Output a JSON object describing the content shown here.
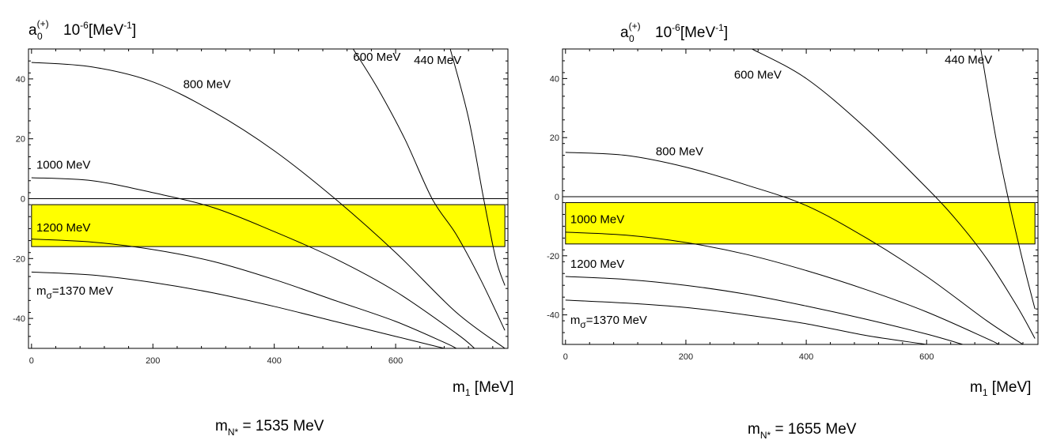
{
  "chart_data": [
    {
      "type": "line",
      "ylabel": {
        "base": "a",
        "sub": "0",
        "sup": "(+)",
        "factor_base": "10",
        "factor_sup": "-6",
        "unit_base": "[MeV",
        "unit_sup": "-1",
        "unit_close": "]"
      },
      "xlabel": {
        "base": "m",
        "sub": "1",
        "unit": "[MeV]"
      },
      "caption": {
        "base": "m",
        "sub": "N*",
        "text": "= 1535 MeV"
      },
      "xlim": [
        -5,
        785
      ],
      "ylim": [
        -50,
        50
      ],
      "xticks": [
        "0",
        "200",
        "400",
        "600"
      ],
      "yticks": [
        "-40",
        "-20",
        "0",
        "20",
        "40"
      ],
      "band": {
        "x": [
          0,
          780
        ],
        "y": [
          -16,
          -2
        ],
        "color": "#ffff00"
      },
      "series": [
        {
          "name": "440 MeV",
          "label_x": 630,
          "label_y": 45,
          "points": [
            [
              690,
              50
            ],
            [
              720,
              27
            ],
            [
              745,
              0
            ],
            [
              765,
              -20
            ],
            [
              780,
              -29
            ]
          ]
        },
        {
          "name": "600 MeV",
          "label_x": 530,
          "label_y": 46,
          "points": [
            [
              530,
              50
            ],
            [
              570,
              37
            ],
            [
              615,
              20
            ],
            [
              660,
              0
            ],
            [
              700,
              -12
            ],
            [
              740,
              -27
            ],
            [
              780,
              -44
            ]
          ]
        },
        {
          "name": "800 MeV",
          "label_x": 250,
          "label_y": 37,
          "points": [
            [
              0,
              45.5
            ],
            [
              100,
              44
            ],
            [
              200,
              39
            ],
            [
              300,
              29
            ],
            [
              400,
              16
            ],
            [
              500,
              0
            ],
            [
              600,
              -18
            ],
            [
              700,
              -38
            ],
            [
              780,
              -50
            ]
          ]
        },
        {
          "name": "1000 MeV",
          "label_x": 8,
          "label_y": 10,
          "points": [
            [
              0,
              7
            ],
            [
              100,
              6
            ],
            [
              200,
              2
            ],
            [
              300,
              -3
            ],
            [
              400,
              -11
            ],
            [
              500,
              -20
            ],
            [
              600,
              -31
            ],
            [
              700,
              -45
            ],
            [
              730,
              -50
            ]
          ]
        },
        {
          "name": "1200 MeV",
          "label_x": 8,
          "label_y": -11,
          "points": [
            [
              0,
              -13.5
            ],
            [
              100,
              -14.5
            ],
            [
              200,
              -17
            ],
            [
              300,
              -21
            ],
            [
              400,
              -27
            ],
            [
              500,
              -34
            ],
            [
              600,
              -41
            ],
            [
              680,
              -48
            ],
            [
              700,
              -50
            ]
          ]
        },
        {
          "name": "m_sigma=1370 MeV",
          "label_x": 8,
          "label_y": -32,
          "points": [
            [
              0,
              -24.5
            ],
            [
              100,
              -25.5
            ],
            [
              200,
              -28
            ],
            [
              300,
              -31.5
            ],
            [
              400,
              -36
            ],
            [
              500,
              -41
            ],
            [
              600,
              -46
            ],
            [
              680,
              -50
            ]
          ]
        }
      ],
      "hline_y": 0,
      "label_parts": {
        "m_sigma=1370 MeV": {
          "base": "m",
          "sub": "σ",
          "rest": "=1370 MeV"
        }
      }
    },
    {
      "type": "line",
      "ylabel": {
        "base": "a",
        "sub": "0",
        "sup": "(+)",
        "factor_base": "10",
        "factor_sup": "-6",
        "unit_base": "[MeV",
        "unit_sup": "-1",
        "unit_close": "]"
      },
      "xlabel": {
        "base": "m",
        "sub": "1",
        "unit": "[MeV]"
      },
      "caption": {
        "base": "m",
        "sub": "N*",
        "text": "= 1655 MeV"
      },
      "xlim": [
        -5,
        785
      ],
      "ylim": [
        -50,
        50
      ],
      "xticks": [
        "0",
        "200",
        "400",
        "600"
      ],
      "yticks": [
        "-40",
        "-20",
        "0",
        "20",
        "40"
      ],
      "band": {
        "x": [
          0,
          780
        ],
        "y": [
          -16,
          -2
        ],
        "color": "#ffff00"
      },
      "series": [
        {
          "name": "440 MeV",
          "label_x": 630,
          "label_y": 45,
          "points": [
            [
              690,
              50
            ],
            [
              715,
              20
            ],
            [
              735,
              0
            ],
            [
              760,
              -22
            ],
            [
              780,
              -38
            ]
          ]
        },
        {
          "name": "600 MeV",
          "label_x": 280,
          "label_y": 40,
          "points": [
            [
              310,
              50
            ],
            [
              400,
              40
            ],
            [
              500,
              23
            ],
            [
              600,
              3
            ],
            [
              650,
              -8
            ],
            [
              700,
              -21
            ],
            [
              750,
              -37
            ],
            [
              780,
              -48
            ]
          ]
        },
        {
          "name": "800 MeV",
          "label_x": 150,
          "label_y": 14,
          "points": [
            [
              0,
              15
            ],
            [
              100,
              14
            ],
            [
              200,
              10
            ],
            [
              300,
              4
            ],
            [
              400,
              -3
            ],
            [
              500,
              -14
            ],
            [
              600,
              -27
            ],
            [
              700,
              -42
            ],
            [
              760,
              -50
            ]
          ]
        },
        {
          "name": "1000 MeV",
          "label_x": 8,
          "label_y": -9,
          "points": [
            [
              0,
              -12
            ],
            [
              100,
              -13
            ],
            [
              200,
              -15.5
            ],
            [
              300,
              -19.5
            ],
            [
              400,
              -25
            ],
            [
              500,
              -31.5
            ],
            [
              600,
              -39
            ],
            [
              700,
              -48
            ],
            [
              720,
              -50
            ]
          ]
        },
        {
          "name": "1200 MeV",
          "label_x": 8,
          "label_y": -24,
          "points": [
            [
              0,
              -27
            ],
            [
              100,
              -28
            ],
            [
              200,
              -30
            ],
            [
              300,
              -33
            ],
            [
              400,
              -37
            ],
            [
              500,
              -41.5
            ],
            [
              600,
              -46.5
            ],
            [
              660,
              -50
            ]
          ]
        },
        {
          "name": "m_sigma=1370 MeV",
          "label_x": 8,
          "label_y": -43,
          "points": [
            [
              0,
              -35
            ],
            [
              100,
              -36
            ],
            [
              200,
              -37.5
            ],
            [
              300,
              -40
            ],
            [
              400,
              -43
            ],
            [
              500,
              -47
            ],
            [
              600,
              -50
            ]
          ]
        }
      ],
      "hline_y": 0,
      "label_parts": {
        "m_sigma=1370 MeV": {
          "base": "m",
          "sub": "σ",
          "rest": "=1370 MeV"
        }
      }
    }
  ]
}
